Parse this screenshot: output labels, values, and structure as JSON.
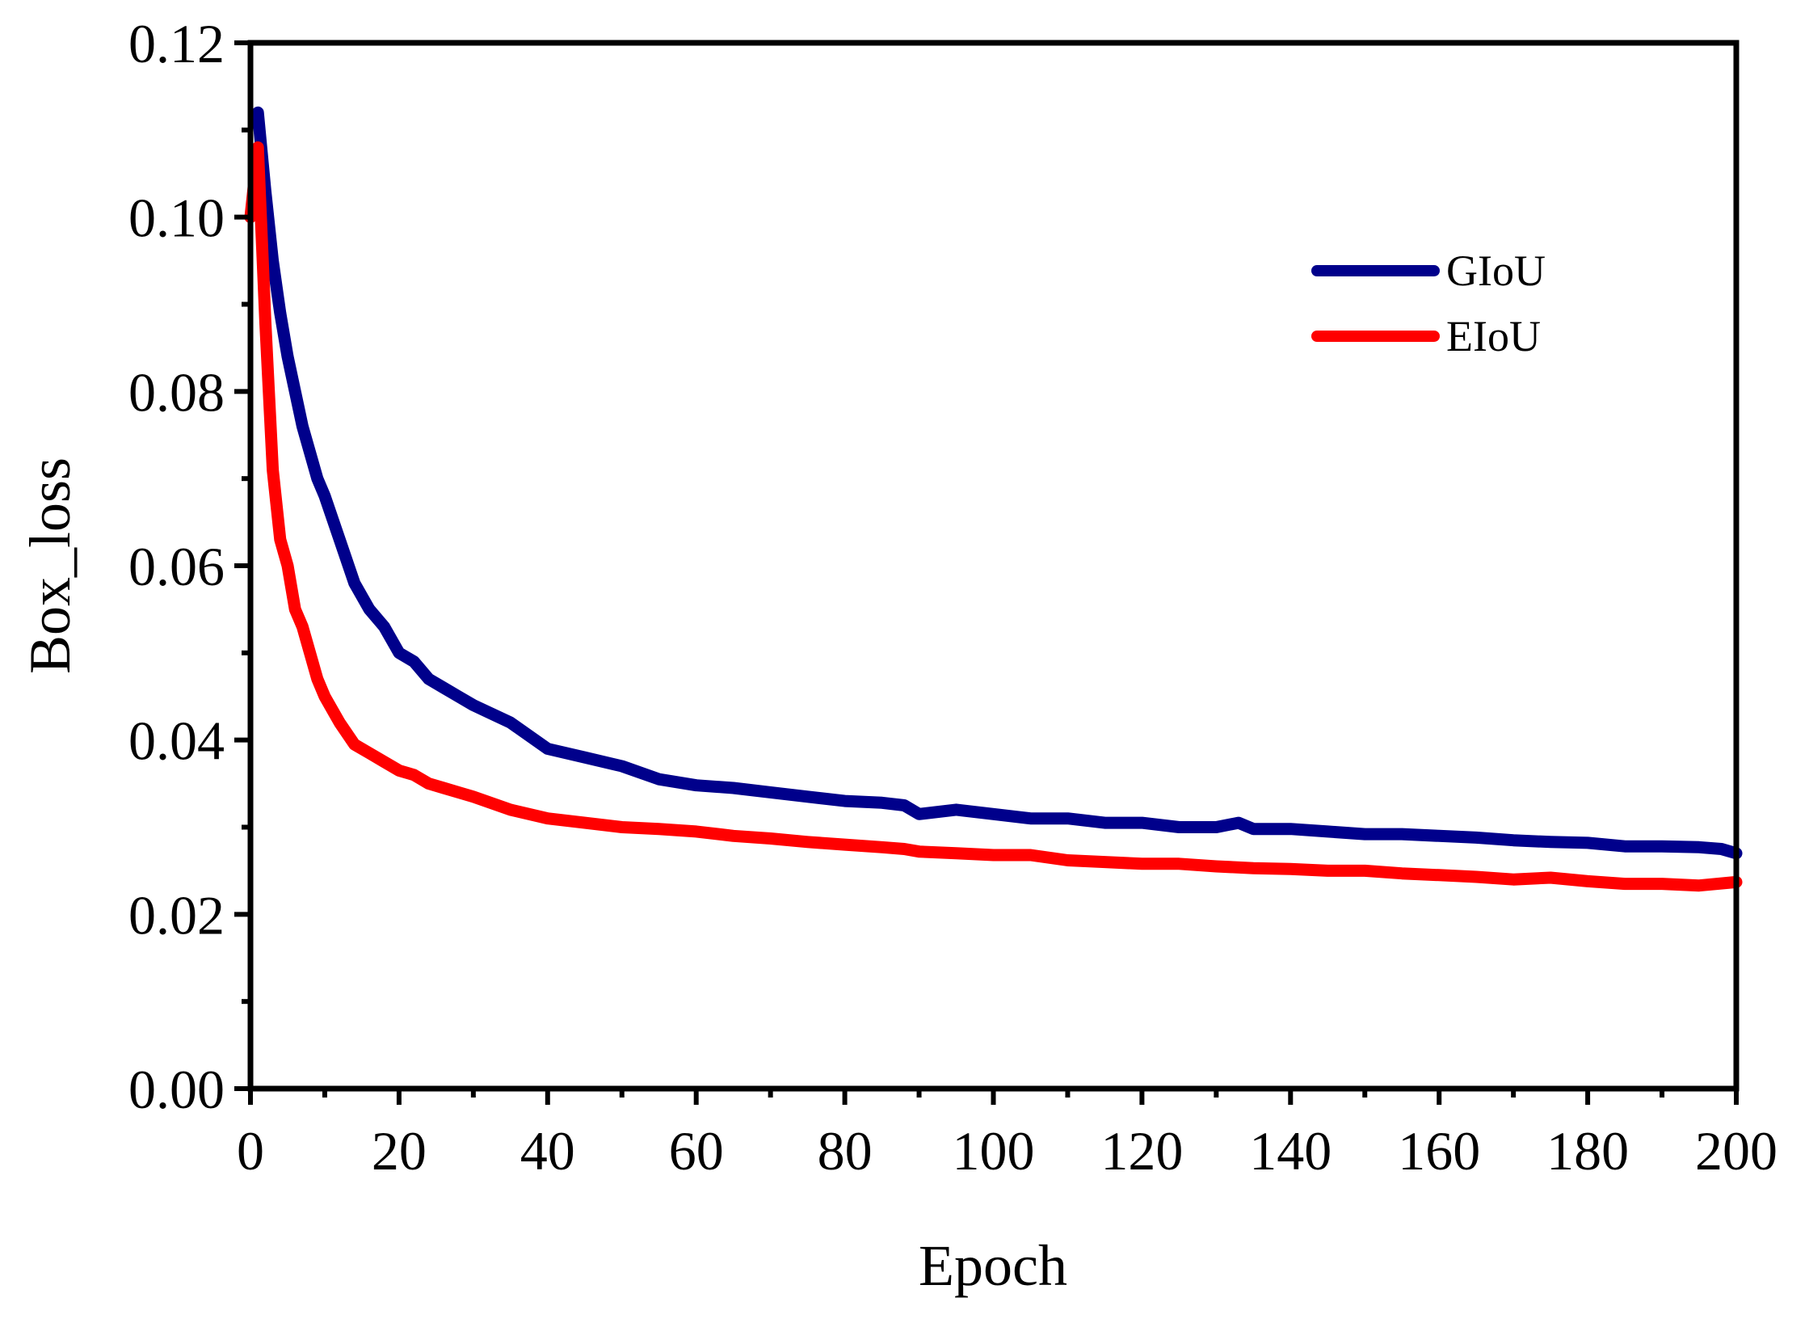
{
  "chart_data": {
    "type": "line",
    "title": "",
    "xlabel": "Epoch",
    "ylabel": "Box_loss",
    "xlim": [
      0,
      200
    ],
    "ylim": [
      0,
      0.12
    ],
    "xticks": [
      0,
      20,
      40,
      60,
      80,
      100,
      120,
      140,
      160,
      180,
      200
    ],
    "xtick_labels": [
      "0",
      "20",
      "40",
      "60",
      "80",
      "100",
      "120",
      "140",
      "160",
      "180",
      "200"
    ],
    "yticks": [
      0,
      0.02,
      0.04,
      0.06,
      0.08,
      0.1,
      0.12
    ],
    "ytick_labels": [
      "0.00",
      "0.02",
      "0.04",
      "0.06",
      "0.08",
      "0.10",
      "0.12"
    ],
    "grid": false,
    "legend_position": "top-right",
    "series": [
      {
        "name": "GIoU",
        "color": "#00008B",
        "x": [
          1,
          2,
          3,
          4,
          5,
          6,
          7,
          8,
          9,
          10,
          12,
          14,
          16,
          18,
          20,
          22,
          24,
          26,
          28,
          30,
          35,
          40,
          45,
          50,
          55,
          60,
          65,
          70,
          75,
          80,
          85,
          88,
          90,
          95,
          100,
          105,
          110,
          115,
          120,
          125,
          130,
          133,
          135,
          140,
          145,
          150,
          155,
          160,
          165,
          170,
          175,
          180,
          185,
          190,
          195,
          198,
          200
        ],
        "values": [
          0.112,
          0.103,
          0.095,
          0.089,
          0.084,
          0.08,
          0.076,
          0.073,
          0.07,
          0.068,
          0.063,
          0.058,
          0.055,
          0.053,
          0.05,
          0.049,
          0.047,
          0.046,
          0.045,
          0.044,
          0.042,
          0.039,
          0.038,
          0.037,
          0.0355,
          0.0348,
          0.0345,
          0.034,
          0.0335,
          0.033,
          0.0328,
          0.0325,
          0.0315,
          0.032,
          0.0315,
          0.031,
          0.031,
          0.0305,
          0.0305,
          0.03,
          0.03,
          0.0305,
          0.0298,
          0.0298,
          0.0295,
          0.0292,
          0.0292,
          0.029,
          0.0288,
          0.0285,
          0.0283,
          0.0282,
          0.0278,
          0.0278,
          0.0277,
          0.0275,
          0.027
        ]
      },
      {
        "name": "EIoU",
        "color": "#FF0000",
        "x": [
          0,
          1,
          2,
          3,
          4,
          5,
          6,
          7,
          8,
          9,
          10,
          12,
          14,
          16,
          18,
          20,
          22,
          24,
          26,
          28,
          30,
          35,
          40,
          45,
          50,
          55,
          60,
          65,
          70,
          75,
          80,
          85,
          88,
          90,
          95,
          100,
          105,
          110,
          115,
          120,
          125,
          130,
          135,
          140,
          145,
          150,
          155,
          160,
          165,
          170,
          175,
          180,
          185,
          190,
          195,
          200
        ],
        "values": [
          0.1,
          0.108,
          0.088,
          0.071,
          0.063,
          0.06,
          0.055,
          0.053,
          0.05,
          0.047,
          0.045,
          0.042,
          0.0395,
          0.0385,
          0.0375,
          0.0365,
          0.036,
          0.035,
          0.0345,
          0.034,
          0.0335,
          0.032,
          0.031,
          0.0305,
          0.03,
          0.0298,
          0.0295,
          0.029,
          0.0287,
          0.0283,
          0.028,
          0.0277,
          0.0275,
          0.0272,
          0.027,
          0.0268,
          0.0268,
          0.0262,
          0.026,
          0.0258,
          0.0258,
          0.0255,
          0.0253,
          0.0252,
          0.025,
          0.025,
          0.0247,
          0.0245,
          0.0243,
          0.024,
          0.0242,
          0.0238,
          0.0235,
          0.0235,
          0.0233,
          0.0237
        ]
      }
    ]
  }
}
